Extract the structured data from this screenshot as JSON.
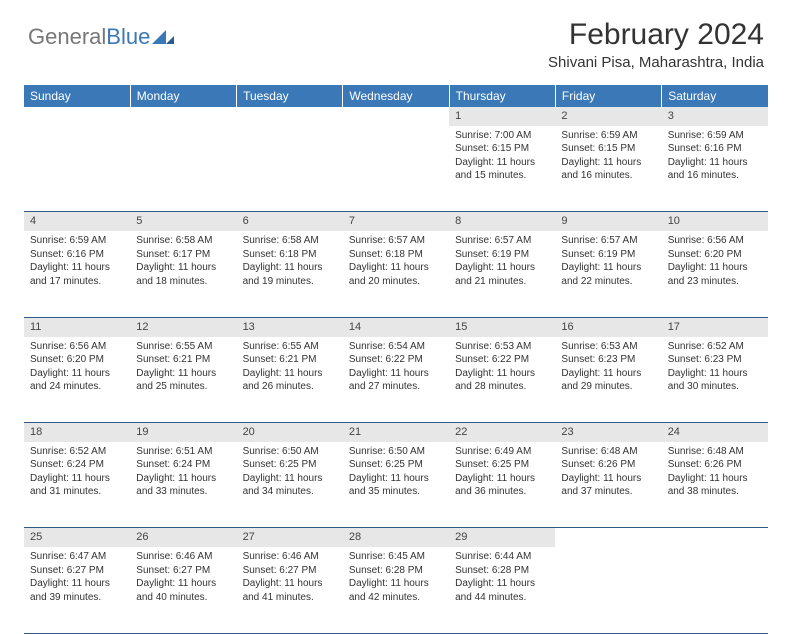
{
  "logo": {
    "general": "General",
    "blue": "Blue"
  },
  "title": "February 2024",
  "location": "Shivani Pisa, Maharashtra, India",
  "colors": {
    "header_bg": "#3b78b8",
    "header_text": "#ffffff",
    "daynum_bg": "#e7e7e7",
    "row_border": "#2f5a8a",
    "text": "#333333"
  },
  "weekdays": [
    "Sunday",
    "Monday",
    "Tuesday",
    "Wednesday",
    "Thursday",
    "Friday",
    "Saturday"
  ],
  "weeks": [
    [
      null,
      null,
      null,
      null,
      {
        "n": "1",
        "sunrise": "7:00 AM",
        "sunset": "6:15 PM",
        "dl": "11 hours and 15 minutes."
      },
      {
        "n": "2",
        "sunrise": "6:59 AM",
        "sunset": "6:15 PM",
        "dl": "11 hours and 16 minutes."
      },
      {
        "n": "3",
        "sunrise": "6:59 AM",
        "sunset": "6:16 PM",
        "dl": "11 hours and 16 minutes."
      }
    ],
    [
      {
        "n": "4",
        "sunrise": "6:59 AM",
        "sunset": "6:16 PM",
        "dl": "11 hours and 17 minutes."
      },
      {
        "n": "5",
        "sunrise": "6:58 AM",
        "sunset": "6:17 PM",
        "dl": "11 hours and 18 minutes."
      },
      {
        "n": "6",
        "sunrise": "6:58 AM",
        "sunset": "6:18 PM",
        "dl": "11 hours and 19 minutes."
      },
      {
        "n": "7",
        "sunrise": "6:57 AM",
        "sunset": "6:18 PM",
        "dl": "11 hours and 20 minutes."
      },
      {
        "n": "8",
        "sunrise": "6:57 AM",
        "sunset": "6:19 PM",
        "dl": "11 hours and 21 minutes."
      },
      {
        "n": "9",
        "sunrise": "6:57 AM",
        "sunset": "6:19 PM",
        "dl": "11 hours and 22 minutes."
      },
      {
        "n": "10",
        "sunrise": "6:56 AM",
        "sunset": "6:20 PM",
        "dl": "11 hours and 23 minutes."
      }
    ],
    [
      {
        "n": "11",
        "sunrise": "6:56 AM",
        "sunset": "6:20 PM",
        "dl": "11 hours and 24 minutes."
      },
      {
        "n": "12",
        "sunrise": "6:55 AM",
        "sunset": "6:21 PM",
        "dl": "11 hours and 25 minutes."
      },
      {
        "n": "13",
        "sunrise": "6:55 AM",
        "sunset": "6:21 PM",
        "dl": "11 hours and 26 minutes."
      },
      {
        "n": "14",
        "sunrise": "6:54 AM",
        "sunset": "6:22 PM",
        "dl": "11 hours and 27 minutes."
      },
      {
        "n": "15",
        "sunrise": "6:53 AM",
        "sunset": "6:22 PM",
        "dl": "11 hours and 28 minutes."
      },
      {
        "n": "16",
        "sunrise": "6:53 AM",
        "sunset": "6:23 PM",
        "dl": "11 hours and 29 minutes."
      },
      {
        "n": "17",
        "sunrise": "6:52 AM",
        "sunset": "6:23 PM",
        "dl": "11 hours and 30 minutes."
      }
    ],
    [
      {
        "n": "18",
        "sunrise": "6:52 AM",
        "sunset": "6:24 PM",
        "dl": "11 hours and 31 minutes."
      },
      {
        "n": "19",
        "sunrise": "6:51 AM",
        "sunset": "6:24 PM",
        "dl": "11 hours and 33 minutes."
      },
      {
        "n": "20",
        "sunrise": "6:50 AM",
        "sunset": "6:25 PM",
        "dl": "11 hours and 34 minutes."
      },
      {
        "n": "21",
        "sunrise": "6:50 AM",
        "sunset": "6:25 PM",
        "dl": "11 hours and 35 minutes."
      },
      {
        "n": "22",
        "sunrise": "6:49 AM",
        "sunset": "6:25 PM",
        "dl": "11 hours and 36 minutes."
      },
      {
        "n": "23",
        "sunrise": "6:48 AM",
        "sunset": "6:26 PM",
        "dl": "11 hours and 37 minutes."
      },
      {
        "n": "24",
        "sunrise": "6:48 AM",
        "sunset": "6:26 PM",
        "dl": "11 hours and 38 minutes."
      }
    ],
    [
      {
        "n": "25",
        "sunrise": "6:47 AM",
        "sunset": "6:27 PM",
        "dl": "11 hours and 39 minutes."
      },
      {
        "n": "26",
        "sunrise": "6:46 AM",
        "sunset": "6:27 PM",
        "dl": "11 hours and 40 minutes."
      },
      {
        "n": "27",
        "sunrise": "6:46 AM",
        "sunset": "6:27 PM",
        "dl": "11 hours and 41 minutes."
      },
      {
        "n": "28",
        "sunrise": "6:45 AM",
        "sunset": "6:28 PM",
        "dl": "11 hours and 42 minutes."
      },
      {
        "n": "29",
        "sunrise": "6:44 AM",
        "sunset": "6:28 PM",
        "dl": "11 hours and 44 minutes."
      },
      null,
      null
    ]
  ],
  "labels": {
    "sunrise": "Sunrise: ",
    "sunset": "Sunset: ",
    "daylight": "Daylight: "
  }
}
